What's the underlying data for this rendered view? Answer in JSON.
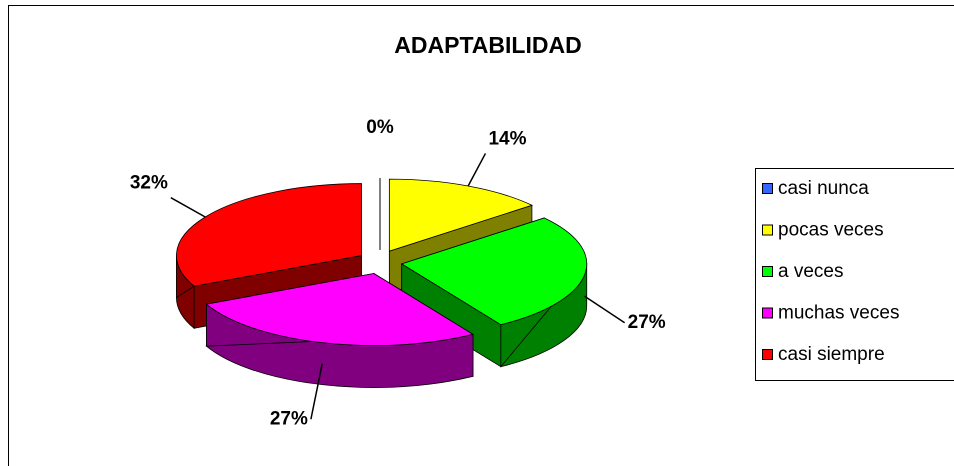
{
  "chart_data": {
    "type": "pie3d",
    "title": "ADAPTABILIDAD",
    "categories": [
      "casi nunca",
      "pocas veces",
      "a veces",
      "muchas veces",
      "casi siempre"
    ],
    "values": [
      0,
      14,
      27,
      27,
      32
    ],
    "value_labels": [
      "0%",
      "14%",
      "27%",
      "27%",
      "32%"
    ],
    "colors": [
      "#3366ff",
      "#ffff00",
      "#00ff00",
      "#ff00ff",
      "#ff0000"
    ],
    "legend": "right"
  }
}
